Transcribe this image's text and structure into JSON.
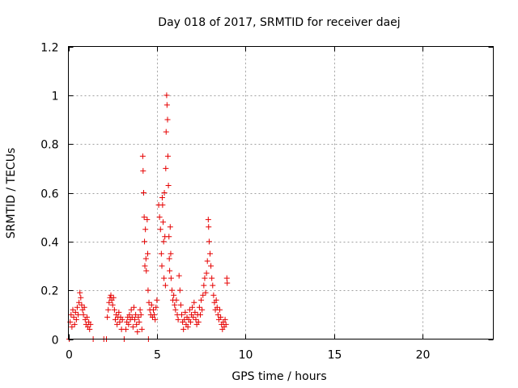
{
  "chart_data": {
    "type": "scatter",
    "title": "Day 018 of 2017, SRMTID for receiver daej",
    "xlabel": "GPS time / hours",
    "ylabel": "SRMTID / TECUs",
    "xlim": [
      0,
      24
    ],
    "ylim": [
      0,
      1.2
    ],
    "xticks": [
      0,
      5,
      10,
      15,
      20
    ],
    "xtick_labels": [
      "0",
      "5",
      "10",
      "15",
      "20"
    ],
    "yticks": [
      0,
      0.2,
      0.4,
      0.6,
      0.8,
      1.0,
      1.2
    ],
    "ytick_labels": [
      "0",
      "0.2",
      "0.4",
      "0.6",
      "0.8",
      "1",
      "1.2"
    ],
    "grid": true,
    "marker": "+",
    "color": "#e60000",
    "series": [
      {
        "name": "daej",
        "points": [
          [
            0.05,
            0.0
          ],
          [
            0.1,
            0.07
          ],
          [
            0.15,
            0.1
          ],
          [
            0.2,
            0.05
          ],
          [
            0.25,
            0.12
          ],
          [
            0.3,
            0.09
          ],
          [
            0.35,
            0.06
          ],
          [
            0.4,
            0.11
          ],
          [
            0.45,
            0.08
          ],
          [
            0.5,
            0.13
          ],
          [
            0.55,
            0.1
          ],
          [
            0.6,
            0.15
          ],
          [
            0.65,
            0.19
          ],
          [
            0.7,
            0.17
          ],
          [
            0.75,
            0.14
          ],
          [
            0.8,
            0.12
          ],
          [
            0.85,
            0.1
          ],
          [
            0.9,
            0.13
          ],
          [
            0.95,
            0.08
          ],
          [
            1.0,
            0.06
          ],
          [
            1.05,
            0.09
          ],
          [
            1.1,
            0.05
          ],
          [
            1.15,
            0.07
          ],
          [
            1.2,
            0.04
          ],
          [
            1.25,
            0.06
          ],
          [
            1.4,
            0.0
          ],
          [
            2.0,
            0.0
          ],
          [
            2.15,
            0.0
          ],
          [
            2.2,
            0.09
          ],
          [
            2.25,
            0.12
          ],
          [
            2.3,
            0.15
          ],
          [
            2.35,
            0.17
          ],
          [
            2.4,
            0.18
          ],
          [
            2.45,
            0.16
          ],
          [
            2.5,
            0.14
          ],
          [
            2.55,
            0.17
          ],
          [
            2.6,
            0.12
          ],
          [
            2.65,
            0.08
          ],
          [
            2.7,
            0.1
          ],
          [
            2.75,
            0.06
          ],
          [
            2.8,
            0.09
          ],
          [
            2.85,
            0.11
          ],
          [
            2.9,
            0.07
          ],
          [
            2.95,
            0.09
          ],
          [
            3.0,
            0.04
          ],
          [
            3.05,
            0.08
          ],
          [
            3.15,
            0.0
          ],
          [
            3.25,
            0.04
          ],
          [
            3.3,
            0.07
          ],
          [
            3.35,
            0.09
          ],
          [
            3.4,
            0.06
          ],
          [
            3.45,
            0.1
          ],
          [
            3.5,
            0.08
          ],
          [
            3.55,
            0.12
          ],
          [
            3.6,
            0.09
          ],
          [
            3.65,
            0.05
          ],
          [
            3.7,
            0.13
          ],
          [
            3.75,
            0.08
          ],
          [
            3.8,
            0.1
          ],
          [
            3.85,
            0.06
          ],
          [
            3.9,
            0.03
          ],
          [
            3.95,
            0.09
          ],
          [
            4.0,
            0.07
          ],
          [
            4.05,
            0.12
          ],
          [
            4.1,
            0.1
          ],
          [
            4.15,
            0.04
          ],
          [
            4.2,
            0.75
          ],
          [
            4.22,
            0.69
          ],
          [
            4.25,
            0.6
          ],
          [
            4.28,
            0.5
          ],
          [
            4.3,
            0.4
          ],
          [
            4.32,
            0.3
          ],
          [
            4.35,
            0.45
          ],
          [
            4.38,
            0.33
          ],
          [
            4.4,
            0.28
          ],
          [
            4.45,
            0.49
          ],
          [
            4.48,
            0.35
          ],
          [
            4.5,
            0.2
          ],
          [
            4.52,
            0.0
          ],
          [
            4.55,
            0.15
          ],
          [
            4.6,
            0.12
          ],
          [
            4.65,
            0.1
          ],
          [
            4.7,
            0.14
          ],
          [
            4.75,
            0.09
          ],
          [
            4.8,
            0.12
          ],
          [
            4.85,
            0.1
          ],
          [
            4.9,
            0.08
          ],
          [
            4.95,
            0.13
          ],
          [
            5.0,
            0.16
          ],
          [
            5.1,
            0.55
          ],
          [
            5.15,
            0.5
          ],
          [
            5.2,
            0.45
          ],
          [
            5.25,
            0.35
          ],
          [
            5.28,
            0.3
          ],
          [
            5.3,
            0.58
          ],
          [
            5.32,
            0.55
          ],
          [
            5.35,
            0.48
          ],
          [
            5.38,
            0.4
          ],
          [
            5.4,
            0.25
          ],
          [
            5.42,
            0.6
          ],
          [
            5.45,
            0.42
          ],
          [
            5.48,
            0.22
          ],
          [
            5.5,
            0.7
          ],
          [
            5.52,
            0.85
          ],
          [
            5.55,
            1.0
          ],
          [
            5.57,
            0.96
          ],
          [
            5.6,
            0.9
          ],
          [
            5.62,
            0.75
          ],
          [
            5.65,
            0.63
          ],
          [
            5.68,
            0.42
          ],
          [
            5.7,
            0.33
          ],
          [
            5.72,
            0.28
          ],
          [
            5.75,
            0.46
          ],
          [
            5.78,
            0.35
          ],
          [
            5.8,
            0.25
          ],
          [
            5.85,
            0.2
          ],
          [
            5.9,
            0.16
          ],
          [
            5.95,
            0.18
          ],
          [
            6.0,
            0.14
          ],
          [
            6.05,
            0.12
          ],
          [
            6.1,
            0.16
          ],
          [
            6.15,
            0.1
          ],
          [
            6.2,
            0.08
          ],
          [
            6.25,
            0.26
          ],
          [
            6.3,
            0.2
          ],
          [
            6.35,
            0.14
          ],
          [
            6.4,
            0.1
          ],
          [
            6.45,
            0.07
          ],
          [
            6.5,
            0.04
          ],
          [
            6.55,
            0.08
          ],
          [
            6.6,
            0.11
          ],
          [
            6.65,
            0.06
          ],
          [
            6.7,
            0.09
          ],
          [
            6.75,
            0.05
          ],
          [
            6.8,
            0.08
          ],
          [
            6.85,
            0.12
          ],
          [
            6.9,
            0.07
          ],
          [
            6.95,
            0.1
          ],
          [
            7.0,
            0.13
          ],
          [
            7.05,
            0.09
          ],
          [
            7.1,
            0.15
          ],
          [
            7.15,
            0.11
          ],
          [
            7.2,
            0.08
          ],
          [
            7.25,
            0.06
          ],
          [
            7.3,
            0.1
          ],
          [
            7.35,
            0.07
          ],
          [
            7.4,
            0.13
          ],
          [
            7.45,
            0.1
          ],
          [
            7.5,
            0.16
          ],
          [
            7.55,
            0.12
          ],
          [
            7.6,
            0.18
          ],
          [
            7.65,
            0.22
          ],
          [
            7.7,
            0.25
          ],
          [
            7.75,
            0.19
          ],
          [
            7.8,
            0.27
          ],
          [
            7.85,
            0.32
          ],
          [
            7.9,
            0.49
          ],
          [
            7.92,
            0.46
          ],
          [
            7.95,
            0.4
          ],
          [
            8.0,
            0.35
          ],
          [
            8.05,
            0.3
          ],
          [
            8.1,
            0.25
          ],
          [
            8.15,
            0.22
          ],
          [
            8.2,
            0.18
          ],
          [
            8.25,
            0.15
          ],
          [
            8.3,
            0.12
          ],
          [
            8.35,
            0.16
          ],
          [
            8.4,
            0.13
          ],
          [
            8.45,
            0.1
          ],
          [
            8.5,
            0.08
          ],
          [
            8.55,
            0.12
          ],
          [
            8.6,
            0.09
          ],
          [
            8.65,
            0.06
          ],
          [
            8.7,
            0.04
          ],
          [
            8.75,
            0.07
          ],
          [
            8.8,
            0.05
          ],
          [
            8.85,
            0.08
          ],
          [
            8.9,
            0.06
          ],
          [
            8.95,
            0.25
          ],
          [
            8.97,
            0.23
          ]
        ]
      }
    ]
  }
}
